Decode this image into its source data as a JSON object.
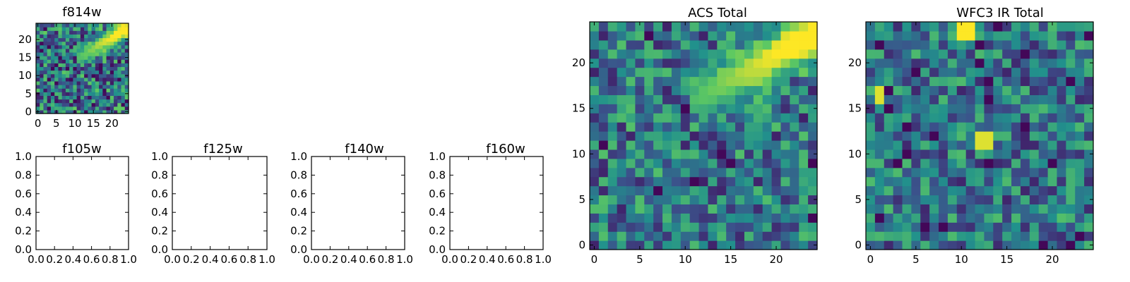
{
  "figure": {
    "colormap": "viridis",
    "colormap_stops": [
      "#440154",
      "#3b528b",
      "#21918c",
      "#5ec962",
      "#fde725"
    ]
  },
  "chart_data": [
    {
      "type": "heatmap",
      "title": "f814w",
      "grid_size": 25,
      "xlim": [
        -0.5,
        24.5
      ],
      "ylim": [
        -0.5,
        24.5
      ],
      "xticks": [
        0,
        5,
        10,
        15,
        20
      ],
      "yticks": [
        0,
        5,
        10,
        15,
        20
      ],
      "features": [
        {
          "kind": "diagonal-band",
          "from": [
            11,
            15
          ],
          "to": [
            24,
            23
          ],
          "peak": 1.0,
          "width": 1.6
        },
        {
          "kind": "spot",
          "center": [
            22,
            1
          ],
          "peak": 0.75,
          "size": 1
        }
      ],
      "noise_level": 0.45,
      "seed": 814
    },
    {
      "type": "scatter",
      "title": "f105w",
      "points": [],
      "xlim": [
        0.0,
        1.0
      ],
      "ylim": [
        0.0,
        1.0
      ],
      "xticks": [
        "0.0",
        "0.2",
        "0.4",
        "0.6",
        "0.8",
        "1.0"
      ],
      "yticks": [
        "0.0",
        "0.2",
        "0.4",
        "0.6",
        "0.8",
        "1.0"
      ]
    },
    {
      "type": "scatter",
      "title": "f125w",
      "points": [],
      "xlim": [
        0.0,
        1.0
      ],
      "ylim": [
        0.0,
        1.0
      ],
      "xticks": [
        "0.0",
        "0.2",
        "0.4",
        "0.6",
        "0.8",
        "1.0"
      ],
      "yticks": [
        "0.0",
        "0.2",
        "0.4",
        "0.6",
        "0.8",
        "1.0"
      ]
    },
    {
      "type": "scatter",
      "title": "f140w",
      "points": [],
      "xlim": [
        0.0,
        1.0
      ],
      "ylim": [
        0.0,
        1.0
      ],
      "xticks": [
        "0.0",
        "0.2",
        "0.4",
        "0.6",
        "0.8",
        "1.0"
      ],
      "yticks": [
        "0.0",
        "0.2",
        "0.4",
        "0.6",
        "0.8",
        "1.0"
      ]
    },
    {
      "type": "scatter",
      "title": "f160w",
      "points": [],
      "xlim": [
        0.0,
        1.0
      ],
      "ylim": [
        0.0,
        1.0
      ],
      "xticks": [
        "0.0",
        "0.2",
        "0.4",
        "0.6",
        "0.8",
        "1.0"
      ],
      "yticks": [
        "0.0",
        "0.2",
        "0.4",
        "0.6",
        "0.8",
        "1.0"
      ]
    },
    {
      "type": "heatmap",
      "title": "ACS Total",
      "grid_size": 25,
      "xlim": [
        -0.5,
        24.5
      ],
      "ylim": [
        -0.5,
        24.5
      ],
      "xticks": [
        0,
        5,
        10,
        15,
        20
      ],
      "yticks": [
        0,
        5,
        10,
        15,
        20
      ],
      "features": [
        {
          "kind": "diagonal-band",
          "from": [
            11,
            16
          ],
          "to": [
            24,
            23
          ],
          "peak": 1.0,
          "width": 1.8
        }
      ],
      "noise_level": 0.38,
      "seed": 2024
    },
    {
      "type": "heatmap",
      "title": "WFC3 IR Total",
      "grid_size": 25,
      "xlim": [
        -0.5,
        24.5
      ],
      "ylim": [
        -0.5,
        24.5
      ],
      "xticks": [
        0,
        5,
        10,
        15,
        20
      ],
      "yticks": [
        0,
        5,
        10,
        15,
        20
      ],
      "features": [
        {
          "kind": "block",
          "x": [
            10,
            11
          ],
          "y": [
            23,
            24
          ],
          "value": 1.0
        },
        {
          "kind": "block",
          "x": [
            1,
            1
          ],
          "y": [
            16,
            17
          ],
          "value": 0.95
        },
        {
          "kind": "block",
          "x": [
            12,
            13
          ],
          "y": [
            11,
            12
          ],
          "value": 0.95
        },
        {
          "kind": "block",
          "x": [
            21,
            21
          ],
          "y": [
            3,
            3
          ],
          "value": 0.7
        }
      ],
      "noise_level": 0.36,
      "seed": 160
    }
  ]
}
